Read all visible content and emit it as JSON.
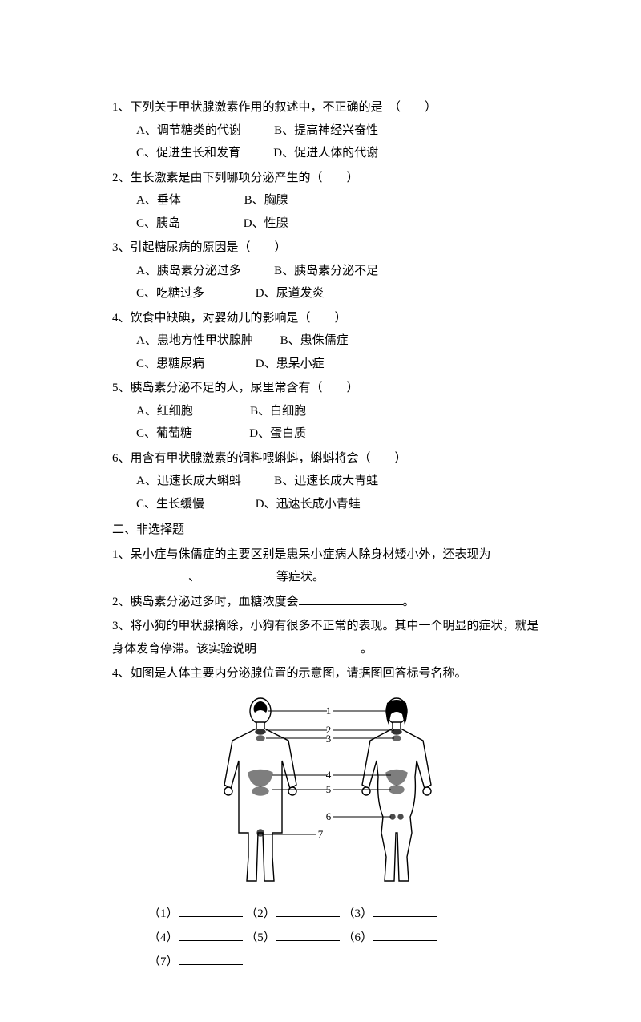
{
  "mcq": [
    {
      "num": "1、",
      "stem": "下列关于甲状腺激素作用的叙述中，不正确的是　（　　）",
      "opts": [
        [
          "A、调节糖类的代谢",
          "B、提高神经兴奋性"
        ],
        [
          "C、促进生长和发育",
          "D、促进人体的代谢"
        ]
      ]
    },
    {
      "num": "2、",
      "stem": "生长激素是由下列哪项分泌产生的（　　）",
      "opts": [
        [
          "A、垂体",
          "B、胸腺"
        ],
        [
          "C、胰岛",
          "D、性腺"
        ]
      ]
    },
    {
      "num": "3、",
      "stem": "引起糖尿病的原因是（　　）",
      "opts": [
        [
          "A、胰岛素分泌过多",
          "B、胰岛素分泌不足"
        ],
        [
          "C、吃糖过多",
          "D、尿道发炎"
        ]
      ]
    },
    {
      "num": "4、",
      "stem": "饮食中缺碘，对婴幼儿的影响是（　　）",
      "opts": [
        [
          "A、患地方性甲状腺肿",
          "B、患侏儒症"
        ],
        [
          "C、患糖尿病",
          "D、患呆小症"
        ]
      ]
    },
    {
      "num": "5、",
      "stem": "胰岛素分泌不足的人，尿里常含有（　　）",
      "opts": [
        [
          "A、红细胞",
          "B、白细胞"
        ],
        [
          "C、葡萄糖",
          "D、蛋白质"
        ]
      ]
    },
    {
      "num": "6、",
      "stem": "用含有甲状腺激素的饲料喂蝌蚪，蝌蚪将会（　　）",
      "opts": [
        [
          "A、迅速长成大蝌蚪",
          "B、迅速长成大青蛙"
        ],
        [
          "C、生长缓慢",
          "D、迅速长成小青蛙"
        ]
      ]
    }
  ],
  "section_two": "二、非选择题",
  "fill": {
    "q1a": "1、呆小症与侏儒症的主要区别是患呆小症病人除身材矮小外，还表现为",
    "q1b_suffix": "等症状。",
    "q2a": "2、胰岛素分泌过多时，血糖浓度会",
    "q2b": "。",
    "q3a": "3、将小狗的甲状腺摘除，小狗有很多不正常的表现。其中一个明显的症状，就是身体发育停滞。该实验说明",
    "q3b": "。",
    "q4": "4、如图是人体主要内分泌腺位置的示意图，请据图回答标号名称。"
  },
  "diagram": {
    "labels": [
      "1",
      "2",
      "3",
      "4",
      "5",
      "6",
      "7"
    ]
  },
  "answers": {
    "row1": [
      "（1）",
      "（2）",
      "（3）"
    ],
    "row2": [
      "（4）",
      "（5）",
      "（6）"
    ],
    "row3": [
      "（7）"
    ]
  }
}
